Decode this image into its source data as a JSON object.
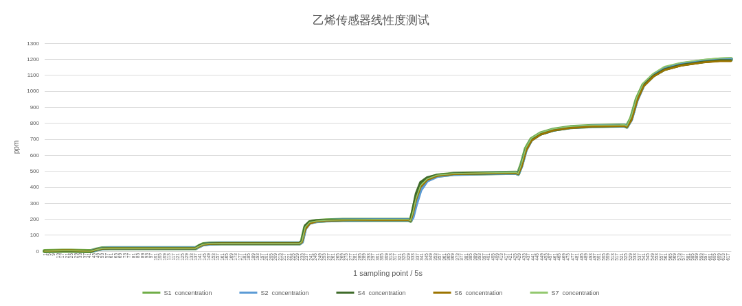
{
  "chart_data": {
    "type": "line",
    "title": "乙烯传感器线性度测试",
    "xlabel": "1 sampling point / 5s",
    "ylabel": "ppm",
    "x": [
      1,
      17,
      25,
      40,
      43,
      48,
      53,
      60,
      137,
      140,
      144,
      150,
      160,
      231,
      233,
      236,
      240,
      246,
      255,
      270,
      300,
      329,
      331,
      333,
      336,
      340,
      346,
      355,
      370,
      400,
      426,
      428,
      431,
      435,
      440,
      448,
      460,
      475,
      495,
      520,
      524,
      526,
      530,
      535,
      541,
      550,
      560,
      575,
      595,
      610,
      620
    ],
    "series": [
      {
        "name": "S1  concentration",
        "color": "#70ad47",
        "values": [
          0,
          2,
          2,
          0,
          0,
          10,
          17,
          18,
          18,
          30,
          43,
          47,
          48,
          48,
          60,
          150,
          180,
          188,
          192,
          195,
          195,
          195,
          190,
          240,
          330,
          410,
          450,
          472,
          483,
          487,
          490,
          483,
          540,
          640,
          700,
          735,
          760,
          775,
          782,
          785,
          785,
          778,
          830,
          950,
          1040,
          1100,
          1140,
          1168,
          1188,
          1198,
          1200
        ]
      },
      {
        "name": "S2  concentration",
        "color": "#5b9bd5",
        "values": [
          null,
          null,
          null,
          null,
          0,
          9,
          16,
          18,
          18,
          28,
          41,
          46,
          48,
          48,
          55,
          140,
          175,
          186,
          191,
          194,
          195,
          195,
          190,
          210,
          290,
          380,
          440,
          468,
          481,
          486,
          489,
          482,
          530,
          630,
          695,
          732,
          758,
          773,
          781,
          784,
          785,
          777,
          820,
          940,
          1035,
          1098,
          1138,
          1167,
          1187,
          1197,
          1199
        ]
      },
      {
        "name": "S4  concentration",
        "color": "#3f6b2a",
        "values": [
          0,
          2,
          2,
          0,
          0,
          10,
          17,
          18,
          18,
          32,
          44,
          47,
          48,
          48,
          65,
          160,
          184,
          190,
          193,
          195,
          195,
          195,
          190,
          260,
          360,
          430,
          460,
          476,
          484,
          487,
          490,
          483,
          535,
          635,
          695,
          730,
          756,
          772,
          780,
          783,
          784,
          777,
          825,
          945,
          1035,
          1095,
          1135,
          1163,
          1183,
          1192,
          1192
        ]
      },
      {
        "name": "S6  concentration",
        "color": "#9c7400",
        "values": [
          0,
          5,
          5,
          0,
          0,
          9,
          16,
          18,
          18,
          27,
          40,
          46,
          48,
          48,
          55,
          135,
          172,
          185,
          190,
          194,
          195,
          195,
          190,
          230,
          320,
          400,
          445,
          470,
          482,
          486,
          489,
          482,
          525,
          625,
          690,
          728,
          755,
          770,
          779,
          782,
          783,
          776,
          815,
          935,
          1030,
          1092,
          1132,
          1160,
          1180,
          1188,
          1188
        ]
      },
      {
        "name": "S7  concentration",
        "color": "#93c86e",
        "values": [
          0,
          2,
          2,
          0,
          0,
          10,
          17,
          18,
          18,
          30,
          43,
          47,
          48,
          48,
          60,
          150,
          180,
          188,
          193,
          195,
          196,
          196,
          191,
          240,
          330,
          410,
          452,
          475,
          485,
          489,
          492,
          485,
          545,
          645,
          705,
          740,
          765,
          780,
          787,
          789,
          790,
          782,
          840,
          960,
          1050,
          1112,
          1155,
          1180,
          1198,
          1207,
          1210
        ]
      }
    ],
    "xlim": [
      1,
      620
    ],
    "xticks": [
      1,
      5,
      9,
      13,
      17,
      21,
      25,
      29,
      33,
      37,
      41,
      45,
      49,
      53,
      57,
      61,
      65,
      69,
      73,
      77,
      81,
      85,
      89,
      93,
      97,
      101,
      105,
      109,
      113,
      117,
      121,
      125,
      129,
      133,
      137,
      141,
      145,
      149,
      153,
      157,
      161,
      165,
      169,
      173,
      177,
      181,
      185,
      189,
      193,
      197,
      201,
      205,
      209,
      213,
      217,
      221,
      225,
      229,
      233,
      237,
      241,
      245,
      249,
      253,
      257,
      261,
      265,
      269,
      273,
      277,
      281,
      285,
      289,
      293,
      297,
      301,
      305,
      309,
      313,
      317,
      321,
      325,
      329,
      333,
      337,
      341,
      345,
      349,
      353,
      357,
      361,
      365,
      369,
      373,
      377,
      381,
      385,
      389,
      393,
      397,
      401,
      405,
      409,
      413,
      417,
      421,
      425,
      429,
      433,
      437,
      441,
      445,
      449,
      453,
      457,
      461,
      465,
      469,
      473,
      477,
      481,
      485,
      489,
      493,
      497,
      501,
      505,
      509,
      513,
      517,
      521,
      525,
      529,
      533,
      537,
      541,
      545,
      549,
      553,
      557,
      561,
      565,
      569,
      573,
      577,
      581,
      585,
      589,
      593,
      597,
      601,
      605,
      609,
      613,
      617
    ],
    "ylim": [
      0,
      1300
    ],
    "yticks": [
      0,
      100,
      200,
      300,
      400,
      500,
      600,
      700,
      800,
      900,
      1000,
      1100,
      1200,
      1300
    ],
    "grid": "y",
    "legend": "bottom",
    "marker": "none",
    "line_style": "solid"
  }
}
